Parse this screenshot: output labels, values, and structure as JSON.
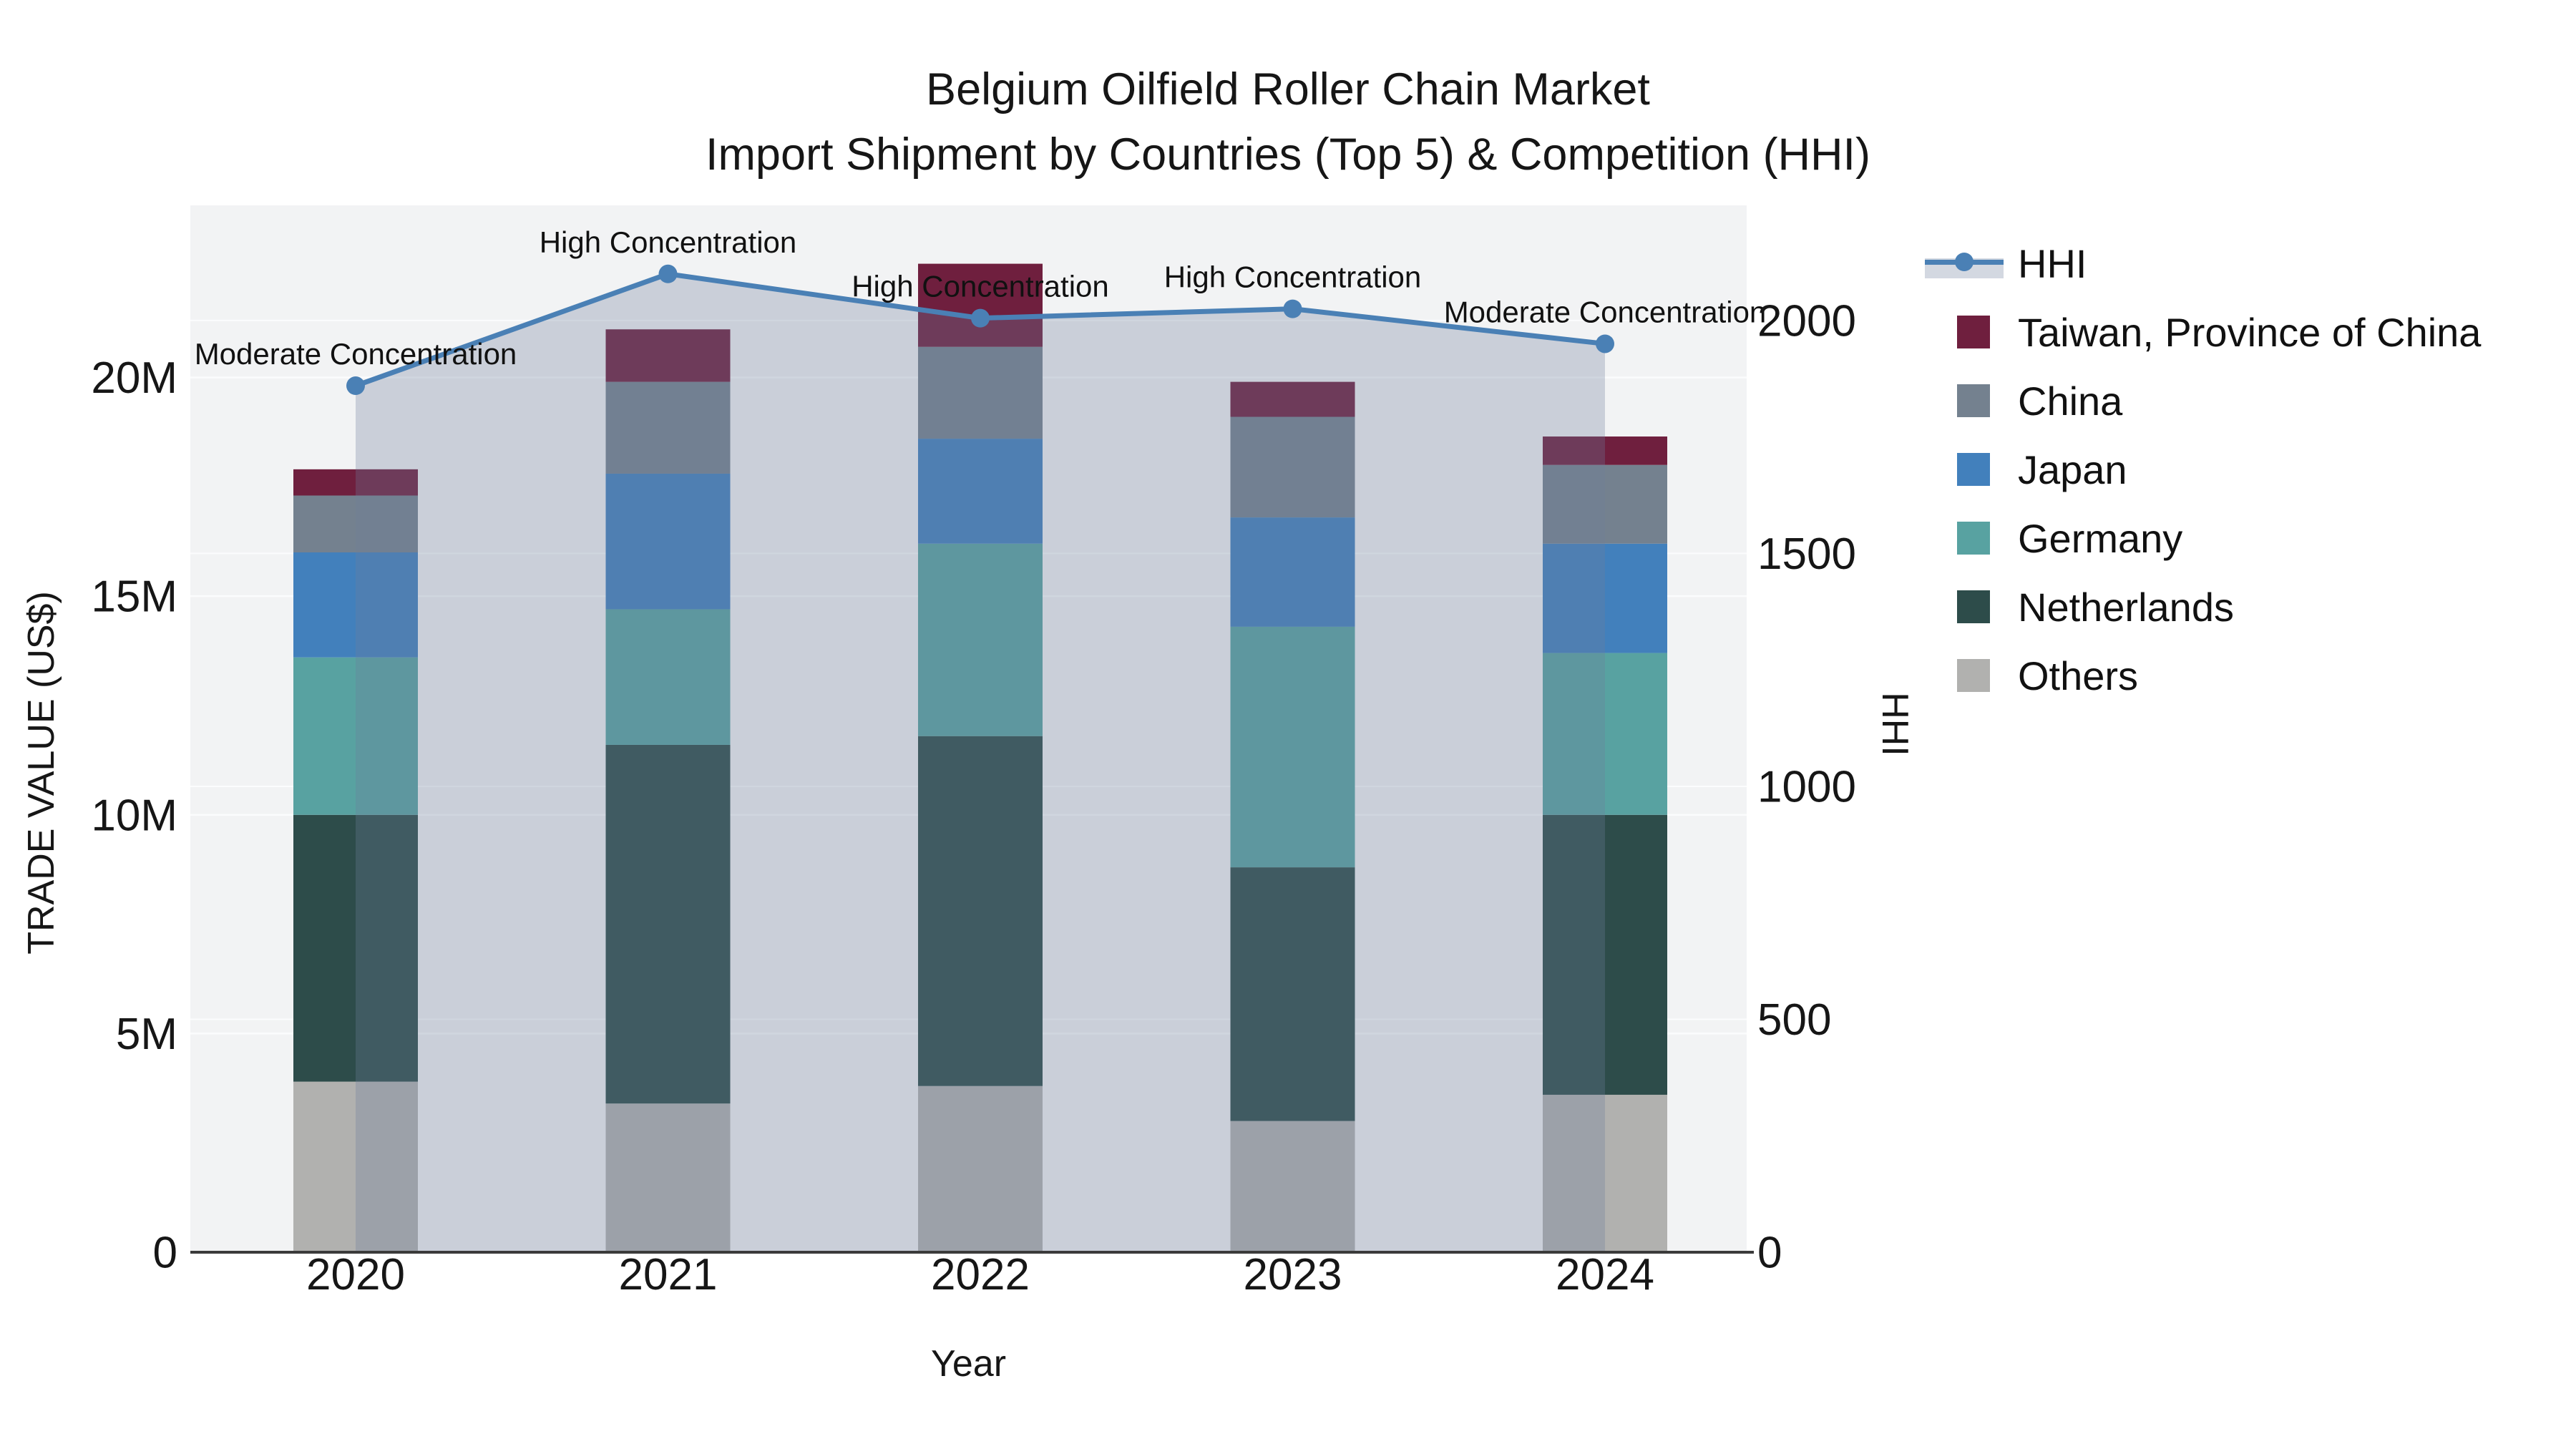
{
  "title": {
    "line1": "Belgium Oilfield Roller Chain Market",
    "line2": "Import Shipment by Countries (Top 5) & Competition (HHI)"
  },
  "axes": {
    "y_left": {
      "title": "TRADE VALUE (US$)",
      "tick_labels": [
        "0",
        "5M",
        "10M",
        "15M",
        "20M"
      ],
      "tick_values_millions": [
        0,
        5,
        10,
        15,
        20
      ]
    },
    "y_right": {
      "title": "HHI",
      "tick_labels": [
        "0",
        "500",
        "1000",
        "1500",
        "2000"
      ],
      "tick_values": [
        0,
        500,
        1000,
        1500,
        2000
      ]
    },
    "x": {
      "title": "Year",
      "categories": [
        "2020",
        "2021",
        "2022",
        "2023",
        "2024"
      ]
    }
  },
  "legend": [
    {
      "label": "HHI",
      "type": "line",
      "color": "#4a80b5"
    },
    {
      "label": "Taiwan, Province of China",
      "type": "square",
      "color": "#6f1f3e"
    },
    {
      "label": "China",
      "type": "square",
      "color": "#74818f"
    },
    {
      "label": "Japan",
      "type": "square",
      "color": "#4280bc"
    },
    {
      "label": "Germany",
      "type": "square",
      "color": "#58a2a1"
    },
    {
      "label": "Netherlands",
      "type": "square",
      "color": "#2d4c4a"
    },
    {
      "label": "Others",
      "type": "square",
      "color": "#b1b1af"
    }
  ],
  "chart_data": {
    "type": "bar+line",
    "title": "Belgium Oilfield Roller Chain Market — Import Shipment by Countries (Top 5) & Competition (HHI)",
    "xlabel": "Year",
    "ylabel_left": "TRADE VALUE (US$)",
    "ylabel_right": "HHI",
    "categories": [
      "2020",
      "2021",
      "2022",
      "2023",
      "2024"
    ],
    "bar_unit": "million US$",
    "stacking": "bottom-to-top: Others, Netherlands, Germany, Japan, China, Taiwan",
    "series": [
      {
        "name": "Taiwan, Province of China",
        "values": [
          0.6,
          1.2,
          1.9,
          0.8,
          0.65
        ],
        "color": "#6f1f3e"
      },
      {
        "name": "China",
        "values": [
          1.3,
          2.1,
          2.1,
          2.3,
          1.8
        ],
        "color": "#74818f"
      },
      {
        "name": "Japan",
        "values": [
          2.4,
          3.1,
          2.4,
          2.5,
          2.5
        ],
        "color": "#4280bc"
      },
      {
        "name": "Germany",
        "values": [
          3.6,
          3.1,
          4.4,
          5.5,
          3.7
        ],
        "color": "#58a2a1"
      },
      {
        "name": "Netherlands",
        "values": [
          6.1,
          8.2,
          8.0,
          5.8,
          6.4
        ],
        "color": "#2d4c4a"
      },
      {
        "name": "Others",
        "values": [
          3.9,
          3.4,
          3.8,
          3.0,
          3.6
        ],
        "color": "#b1b1af"
      }
    ],
    "bar_totals_millions": [
      17.9,
      21.1,
      22.6,
      19.9,
      18.65
    ],
    "line_series": {
      "name": "HHI",
      "axis": "right",
      "values": [
        1860,
        2100,
        2005,
        2025,
        1950
      ],
      "color": "#4a80b5",
      "fill": "rgba(108,125,155,0.30)"
    },
    "annotations": [
      {
        "x": "2020",
        "text": "Moderate Concentration"
      },
      {
        "x": "2021",
        "text": "High Concentration"
      },
      {
        "x": "2022",
        "text": "High Concentration"
      },
      {
        "x": "2023",
        "text": "High Concentration"
      },
      {
        "x": "2024",
        "text": "Moderate Concentration"
      }
    ],
    "ylim_left_millions": [
      0,
      24
    ],
    "ylim_right": [
      0,
      2250
    ],
    "grid": true,
    "legend_position": "right"
  },
  "colors": {
    "plot_background": "#f2f3f4",
    "gridline": "#fbfcfd",
    "axis_line": "#3b3b3b",
    "text": "#161616",
    "hhi_line": "#4a80b5",
    "hhi_fill": "rgba(108,125,155,0.30)"
  }
}
